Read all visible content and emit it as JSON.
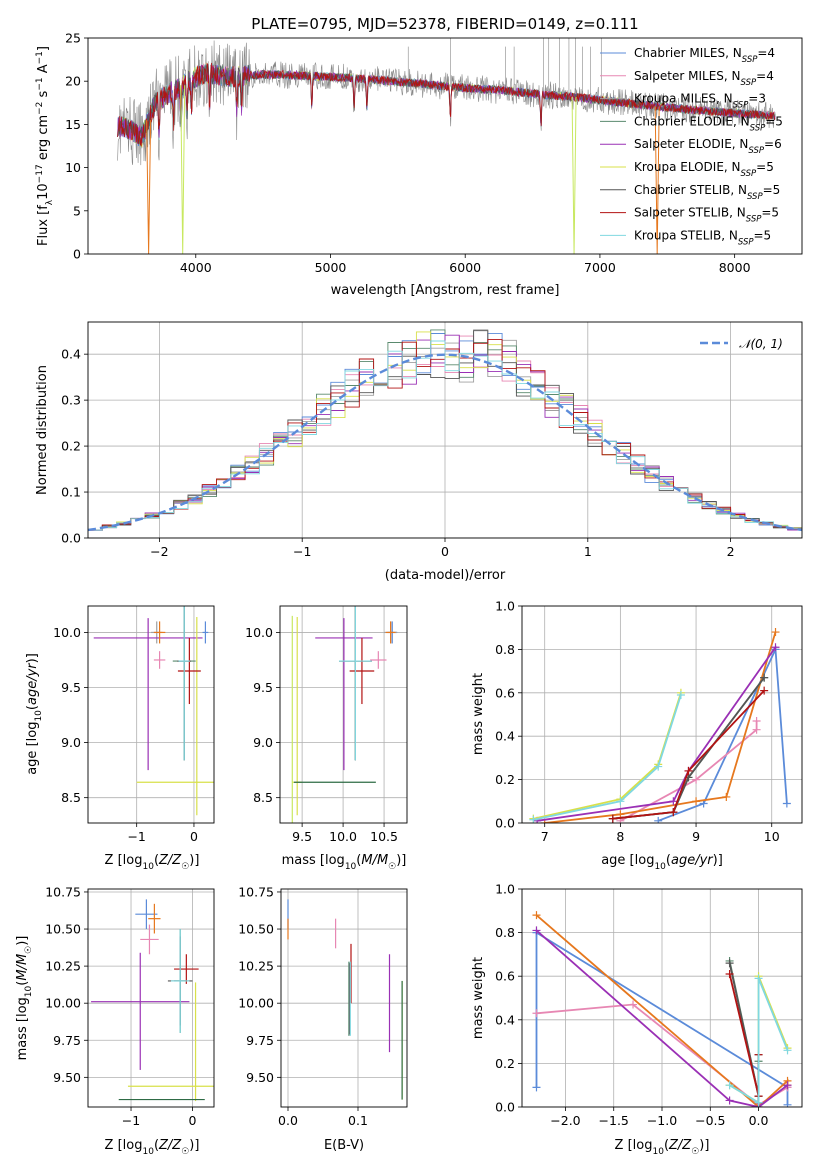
{
  "title": "PLATE=0795, MJD=52378, FIBERID=0149, z=0.111",
  "model_colors": [
    "#5b8bd9",
    "#e787b3",
    "#a0a0a0",
    "#5a8a6e",
    "#9a30b5",
    "#d8e04a",
    "#555555",
    "#b21313",
    "#80d8e0"
  ],
  "accent_colors": {
    "orange": "#e6781e",
    "yellowgreen": "#c8e860",
    "gaussian": "#5b8bd9"
  },
  "chart_data": [
    {
      "id": "spectrum",
      "type": "line",
      "xlabel": "wavelength [Angstrom, rest frame]",
      "ylabel": "Flux [f_λ10^-17 erg cm^-2 s^-1 A^-1]",
      "xlim": [
        3200,
        8500
      ],
      "ylim": [
        0,
        25
      ],
      "xticks": [
        4000,
        5000,
        6000,
        7000,
        8000
      ],
      "yticks": [
        0,
        5,
        10,
        15,
        20,
        25
      ],
      "legend_position": "upper right",
      "legend": [
        "Chabrier MILES, N_SSP=4",
        "Salpeter MILES, N_SSP=4",
        "Kroupa MILES, N_SSP=3",
        "Chabrier ELODIE, N_SSP=5",
        "Salpeter ELODIE, N_SSP=6",
        "Kroupa ELODIE, N_SSP=5",
        "Chabrier STELIB, N_SSP=5",
        "Salpeter STELIB, N_SSP=5",
        "Kroupa STELIB, N_SSP=5"
      ],
      "legend_rows": [
        {
          "name": "Chabrier MILES, N",
          "sub": "SSP",
          "rest": "=4"
        },
        {
          "name": "Salpeter MILES, N",
          "sub": "SSP",
          "rest": "=4"
        },
        {
          "name": "Kroupa MILES, N",
          "sub": "SSP",
          "rest": "=3"
        },
        {
          "name": "Chabrier ELODIE, N",
          "sub": "SSP",
          "rest": "=5"
        },
        {
          "name": "Salpeter ELODIE, N",
          "sub": "SSP",
          "rest": "=6"
        },
        {
          "name": "Kroupa ELODIE, N",
          "sub": "SSP",
          "rest": "=5"
        },
        {
          "name": "Chabrier STELIB, N",
          "sub": "SSP",
          "rest": "=5"
        },
        {
          "name": "Salpeter STELIB, N",
          "sub": "SSP",
          "rest": "=5"
        },
        {
          "name": "Kroupa STELIB, N",
          "sub": "SSP",
          "rest": "=5"
        }
      ],
      "continuum": {
        "x": [
          3420,
          3500,
          3600,
          3650,
          3700,
          3800,
          3900,
          4000,
          4100,
          4200,
          4300,
          4500,
          4700,
          5000,
          5300,
          5600,
          6000,
          6300,
          6600,
          6800,
          7000,
          7300,
          7600,
          8000,
          8300
        ],
        "y": [
          14.8,
          14.5,
          13.5,
          15.5,
          17.5,
          18.5,
          19.5,
          20.5,
          21.0,
          20.5,
          20.5,
          20.8,
          20.7,
          20.5,
          20.2,
          19.8,
          19.2,
          18.9,
          18.4,
          18.2,
          17.8,
          17.3,
          16.8,
          16.3,
          16.0
        ]
      },
      "sky_lines": [
        5577,
        5890,
        6300,
        6363,
        6580,
        6620,
        6700,
        6770,
        6820,
        6870,
        6930,
        7010
      ],
      "dips": [
        {
          "x": 3650,
          "series": 7,
          "color": "accent.orange"
        },
        {
          "x": 3903,
          "series": 5,
          "color": "accent.yellowgreen"
        },
        {
          "x": 6808,
          "series": 5,
          "color": "accent.yellowgreen"
        },
        {
          "x": 7425,
          "series": 7,
          "color": "accent.orange"
        }
      ]
    },
    {
      "id": "residuals",
      "type": "histogram",
      "xlabel": "(data-model)/error",
      "ylabel": "Normed distribution",
      "xlim": [
        -2.5,
        2.5
      ],
      "ylim": [
        0,
        0.47
      ],
      "xticks": [
        -2,
        -1,
        0,
        1,
        2
      ],
      "yticks": [
        0.0,
        0.1,
        0.2,
        0.3,
        0.4
      ],
      "bin_width": 0.1,
      "legend_position": "upper right",
      "legend": [
        "𝒩(0, 1)"
      ]
    },
    {
      "id": "age_vs_Z",
      "type": "scatter",
      "xlabel": "Z [log10(Z/Z☉)]",
      "ylabel": "age [log10(age/yr)]",
      "xlim": [
        -1.85,
        0.35
      ],
      "ylim": [
        8.27,
        10.24
      ],
      "xticks": [
        -1,
        0
      ],
      "yticks": [
        8.5,
        9.0,
        9.5,
        10.0
      ],
      "points": [
        {
          "series": 0,
          "x": 0.2,
          "y": 10.0,
          "xerr": 0.05,
          "yerr": 0.1
        },
        {
          "series": 1,
          "x": -0.6,
          "y": 9.75,
          "xerr": 0.1,
          "yerr": 0.08
        },
        {
          "series": 2,
          "x": -0.65,
          "y": 10.0,
          "xerr": 0.1,
          "yerr": 0.1
        },
        {
          "series": 3,
          "x": -0.17,
          "y": 9.74,
          "xerr": 0.2,
          "yerr": 0.9
        },
        {
          "series": 4,
          "x": -0.8,
          "y": 9.95,
          "xerr": 0.95,
          "yerr": 0.18,
          "yerr_lo": 1.2
        },
        {
          "series": 5,
          "x": 0.05,
          "y": 8.64,
          "xerr": 1.05,
          "yerr": 1.5,
          "yerr_lo": 0.3
        },
        {
          "series": 6,
          "x": -0.17,
          "y": 9.74,
          "xerr": 0.12,
          "yerr": 0.9
        },
        {
          "series": 7,
          "x": -0.08,
          "y": 9.65,
          "xerr": 0.2,
          "yerr": 0.3
        },
        {
          "series": 8,
          "x": -0.17,
          "y": 9.74,
          "xerr": 0.1,
          "yerr": 0.9
        },
        {
          "series": "orange",
          "x": -0.6,
          "y": 10.0,
          "xerr": 0.1,
          "yerr": 0.1
        }
      ]
    },
    {
      "id": "age_vs_mass",
      "type": "scatter",
      "xlabel": "mass [log10(M/M☉)]",
      "ylabel": "",
      "xlim": [
        9.23,
        10.78
      ],
      "ylim": [
        8.27,
        10.24
      ],
      "xticks": [
        9.5,
        10.0,
        10.5
      ],
      "yticks": [
        8.5,
        9.0,
        9.5,
        10.0
      ],
      "points": [
        {
          "series": 0,
          "x": 10.6,
          "y": 10.0,
          "xerr": 0.06,
          "yerr": 0.1
        },
        {
          "series": 1,
          "x": 10.43,
          "y": 9.75,
          "xerr": 0.1,
          "yerr": 0.08
        },
        {
          "series": 2,
          "x": 10.58,
          "y": 10.0,
          "xerr": 0.08,
          "yerr": 0.1
        },
        {
          "series": 3,
          "x": 10.15,
          "y": 9.74,
          "xerr": 0.2,
          "yerr": 0.9
        },
        {
          "series": 4,
          "x": 10.01,
          "y": 9.95,
          "xerr": 0.35,
          "yerr": 0.18,
          "yerr_lo": 1.2
        },
        {
          "series": 5,
          "x": 9.44,
          "y": 8.64,
          "xerr": 0.06,
          "yerr": 1.5,
          "yerr_lo": 0.3
        },
        {
          "series": 6,
          "x": 10.15,
          "y": 9.74,
          "xerr": 0.2,
          "yerr": 0.9
        },
        {
          "series": 7,
          "x": 10.23,
          "y": 9.65,
          "xerr": 0.15,
          "yerr": 0.3
        },
        {
          "series": 8,
          "x": 10.15,
          "y": 9.74,
          "xerr": 0.2,
          "yerr": 0.9
        },
        {
          "series": "yellowgreen",
          "x": 9.38,
          "y": 9.0,
          "xerr": 0.0,
          "yerr": 1.15
        },
        {
          "series": "darkgreen",
          "x": 9.9,
          "y": 8.64,
          "xerr": 0.5,
          "yerr": 0.0
        },
        {
          "series": "orange",
          "x": 10.58,
          "y": 10.0,
          "xerr": 0.06,
          "yerr": 0.1
        }
      ]
    },
    {
      "id": "massweight_vs_age",
      "type": "line",
      "xlabel": "age [log10(age/yr)]",
      "ylabel": "mass weight",
      "xlim": [
        6.7,
        10.4
      ],
      "ylim": [
        0,
        1
      ],
      "xticks": [
        7,
        8,
        9,
        10
      ],
      "yticks": [
        0.0,
        0.2,
        0.4,
        0.6,
        0.8,
        1.0
      ],
      "series": [
        {
          "key": 0,
          "x": [
            8.5,
            9.1,
            10.05,
            10.2
          ],
          "y": [
            0.01,
            0.09,
            0.8,
            0.09
          ]
        },
        {
          "key": 1,
          "x": [
            8.0,
            9.0,
            9.8,
            9.8
          ],
          "y": [
            0.01,
            0.2,
            0.43,
            0.47
          ]
        },
        {
          "key": "orange",
          "x": [
            7.0,
            8.0,
            9.0,
            9.4,
            10.05
          ],
          "y": [
            0.0,
            0.04,
            0.1,
            0.12,
            0.88
          ]
        },
        {
          "key": 3,
          "x": [
            7.9,
            8.7,
            8.9,
            9.9
          ],
          "y": [
            0.02,
            0.05,
            0.21,
            0.67
          ]
        },
        {
          "key": 4,
          "x": [
            6.9,
            8.7,
            8.9,
            10.05
          ],
          "y": [
            0.01,
            0.1,
            0.24,
            0.81
          ]
        },
        {
          "key": 5,
          "x": [
            6.85,
            8.0,
            8.5,
            8.8
          ],
          "y": [
            0.02,
            0.11,
            0.27,
            0.6
          ]
        },
        {
          "key": 6,
          "x": [
            7.9,
            8.7,
            8.9,
            9.9
          ],
          "y": [
            0.02,
            0.05,
            0.21,
            0.67
          ]
        },
        {
          "key": 7,
          "x": [
            7.9,
            8.7,
            8.9,
            9.9
          ],
          "y": [
            0.02,
            0.05,
            0.24,
            0.61
          ]
        },
        {
          "key": 8,
          "x": [
            6.85,
            8.0,
            8.5,
            8.8
          ],
          "y": [
            0.015,
            0.1,
            0.26,
            0.59
          ]
        }
      ]
    },
    {
      "id": "mass_vs_Z",
      "type": "scatter",
      "xlabel": "Z [log10(Z/Z☉)]",
      "ylabel": "mass [log10(M/M☉)]",
      "xlim": [
        -1.7,
        0.35
      ],
      "ylim": [
        9.3,
        10.77
      ],
      "xticks": [
        -1,
        0
      ],
      "yticks": [
        9.5,
        9.75,
        10.0,
        10.25,
        10.5,
        10.75
      ],
      "points": [
        {
          "series": 0,
          "x": -0.75,
          "y": 10.6,
          "xerr": 0.18,
          "yerr": 0.1
        },
        {
          "series": 1,
          "x": -0.7,
          "y": 10.43,
          "xerr": 0.15,
          "yerr": 0.1
        },
        {
          "series": 3,
          "x": -0.2,
          "y": 10.15,
          "xerr": 0.1,
          "yerr": 0.35
        },
        {
          "series": 4,
          "x": -0.85,
          "y": 10.01,
          "xerr": 0.8,
          "yerr": 0.33,
          "yerr_lo": 0.46
        },
        {
          "series": 5,
          "x": 0.05,
          "y": 9.44,
          "xerr": 1.1,
          "yerr": 0.7,
          "yerr_lo": 0.1
        },
        {
          "series": 6,
          "x": -0.2,
          "y": 10.15,
          "xerr": 0.2,
          "yerr": 0.3
        },
        {
          "series": 7,
          "x": -0.1,
          "y": 10.23,
          "xerr": 0.2,
          "yerr": 0.1
        },
        {
          "series": 8,
          "x": -0.2,
          "y": 10.15,
          "xerr": 0.15,
          "yerr": 0.35
        },
        {
          "series": "darkgreen",
          "x": -0.5,
          "y": 9.35,
          "xerr": 0.7,
          "yerr": 0.0
        },
        {
          "series": "orange",
          "x": -0.62,
          "y": 10.57,
          "xerr": 0.1,
          "yerr": 0.1
        }
      ]
    },
    {
      "id": "mass_vs_ebv",
      "type": "errorbar",
      "xlabel": "E(B-V)",
      "ylabel": "",
      "xlim": [
        -0.01,
        0.17
      ],
      "ylim": [
        9.3,
        10.77
      ],
      "xticks": [
        0.0,
        0.1
      ],
      "yticks": [
        9.5,
        9.75,
        10.0,
        10.25,
        10.5,
        10.75
      ],
      "points": [
        {
          "series": 0,
          "x": 0.0,
          "y": 10.6,
          "yerr": 0.1
        },
        {
          "series": "orange",
          "x": 0.0,
          "y": 10.5,
          "yerr": 0.07
        },
        {
          "series": 1,
          "x": 0.068,
          "y": 10.47,
          "yerr": 0.1
        },
        {
          "series": 3,
          "x": 0.087,
          "y": 10.03,
          "yerr": 0.25
        },
        {
          "series": 6,
          "x": 0.088,
          "y": 10.03,
          "yerr": 0.24
        },
        {
          "series": 7,
          "x": 0.09,
          "y": 10.2,
          "yerr": 0.2
        },
        {
          "series": 8,
          "x": 0.089,
          "y": 10.03,
          "yerr": 0.25
        },
        {
          "series": 4,
          "x": 0.145,
          "y": 10.0,
          "yerr": 0.33
        },
        {
          "series": 5,
          "x": 0.163,
          "y": 9.75,
          "yerr": 0.4
        },
        {
          "series": "darkgreen",
          "x": 0.163,
          "y": 9.75,
          "yerr": 0.4
        }
      ]
    },
    {
      "id": "massweight_vs_Z",
      "type": "line",
      "xlabel": "Z [log10(Z/Z☉)]",
      "ylabel": "mass weight",
      "xlim": [
        -2.45,
        0.45
      ],
      "ylim": [
        0,
        1
      ],
      "xticks": [
        -2.0,
        -1.5,
        -1.0,
        -0.5,
        0.0
      ],
      "yticks": [
        0.0,
        0.2,
        0.4,
        0.6,
        0.8,
        1.0
      ],
      "series": [
        {
          "key": 0,
          "x": [
            -2.3,
            -2.3,
            0.3,
            0.3
          ],
          "y": [
            0.09,
            0.8,
            0.09,
            0.01
          ]
        },
        {
          "key": 1,
          "x": [
            -2.3,
            -1.3,
            0.0,
            0.3
          ],
          "y": [
            0.43,
            0.47,
            0.01,
            0.09
          ]
        },
        {
          "key": "orange",
          "x": [
            -2.3,
            0.0,
            0.3,
            0.3
          ],
          "y": [
            0.88,
            0.0,
            0.12,
            0.1
          ]
        },
        {
          "key": 3,
          "x": [
            -0.3,
            0.0,
            0.0,
            0.0
          ],
          "y": [
            0.67,
            0.05,
            0.21,
            0.02
          ]
        },
        {
          "key": 4,
          "x": [
            -2.3,
            -0.3,
            0.0,
            0.3
          ],
          "y": [
            0.81,
            0.03,
            0.0,
            0.1
          ]
        },
        {
          "key": 5,
          "x": [
            -0.3,
            0.0,
            0.0,
            0.3
          ],
          "y": [
            0.1,
            0.02,
            0.6,
            0.27
          ]
        },
        {
          "key": 6,
          "x": [
            -0.3,
            0.0,
            0.0,
            0.0
          ],
          "y": [
            0.66,
            0.05,
            0.24,
            0.02
          ]
        },
        {
          "key": 7,
          "x": [
            -0.3,
            0.0,
            0.0,
            0.0
          ],
          "y": [
            0.61,
            0.05,
            0.24,
            0.02
          ]
        },
        {
          "key": 8,
          "x": [
            -0.3,
            0.0,
            0.0,
            0.3
          ],
          "y": [
            0.1,
            0.02,
            0.59,
            0.26
          ]
        }
      ]
    }
  ]
}
